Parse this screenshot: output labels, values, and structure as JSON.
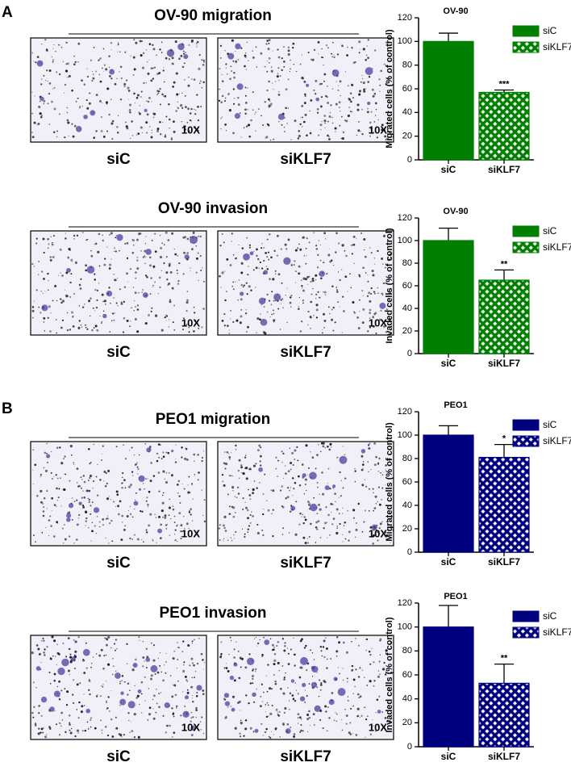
{
  "panel_labels": [
    "A",
    "B"
  ],
  "experiments": [
    {
      "title": "OV-90 migration",
      "images": [
        {
          "condition": "siC",
          "magnification": "10X"
        },
        {
          "condition": "siKLF7",
          "magnification": "10X"
        }
      ]
    },
    {
      "title": "OV-90 invasion",
      "images": [
        {
          "condition": "siC",
          "magnification": "10X"
        },
        {
          "condition": "siKLF7",
          "magnification": "10X"
        }
      ]
    },
    {
      "title": "PEO1 migration",
      "images": [
        {
          "condition": "siC",
          "magnification": "10X"
        },
        {
          "condition": "siKLF7",
          "magnification": "10X"
        }
      ]
    },
    {
      "title": "PEO1 invasion",
      "images": [
        {
          "condition": "siC",
          "magnification": "10X"
        },
        {
          "condition": "siKLF7",
          "magnification": "10X"
        }
      ]
    }
  ],
  "chart_data": [
    {
      "type": "bar",
      "title": "OV-90",
      "ylabel": "Migrated cells (% of control)",
      "categories": [
        "siC",
        "siKLF7"
      ],
      "values": [
        100,
        57
      ],
      "errors": [
        7,
        2
      ],
      "significance": {
        "index": 1,
        "label": "***"
      },
      "color": "#007f00",
      "patterns": [
        "solid",
        "crosshatch"
      ],
      "ylim": [
        0,
        120
      ],
      "yticks": [
        0,
        20,
        40,
        60,
        80,
        100,
        120
      ],
      "legend": "upper right"
    },
    {
      "type": "bar",
      "title": "OV-90",
      "ylabel": "Invaded cells (% of control)",
      "categories": [
        "siC",
        "siKLF7"
      ],
      "values": [
        100,
        65
      ],
      "errors": [
        11,
        9
      ],
      "significance": {
        "index": 1,
        "label": "**"
      },
      "color": "#007f00",
      "patterns": [
        "solid",
        "crosshatch"
      ],
      "ylim": [
        0,
        120
      ],
      "yticks": [
        0,
        20,
        40,
        60,
        80,
        100,
        120
      ],
      "legend": "upper right"
    },
    {
      "type": "bar",
      "title": "PEO1",
      "ylabel": "Migrated cells (% of control)",
      "categories": [
        "siC",
        "siKLF7"
      ],
      "values": [
        100,
        81
      ],
      "errors": [
        8,
        11
      ],
      "significance": {
        "index": 1,
        "label": "*"
      },
      "color": "#00007f",
      "patterns": [
        "solid",
        "crosshatch"
      ],
      "ylim": [
        0,
        120
      ],
      "yticks": [
        0,
        20,
        40,
        60,
        80,
        100,
        120
      ],
      "legend": "upper right"
    },
    {
      "type": "bar",
      "title": "PEO1",
      "ylabel": "Invaded cells (% of control)",
      "categories": [
        "siC",
        "siKLF7"
      ],
      "values": [
        100,
        53
      ],
      "errors": [
        18,
        16
      ],
      "significance": {
        "index": 1,
        "label": "**"
      },
      "color": "#00007f",
      "patterns": [
        "solid",
        "crosshatch"
      ],
      "ylim": [
        0,
        120
      ],
      "yticks": [
        0,
        20,
        40,
        60,
        80,
        100,
        120
      ],
      "legend": "upper right"
    }
  ]
}
